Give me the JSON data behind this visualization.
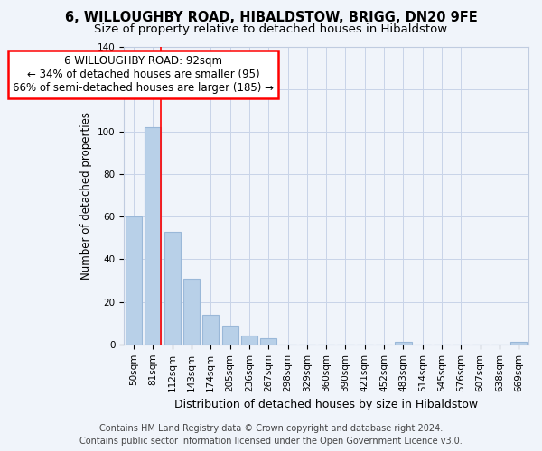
{
  "title": "6, WILLOUGHBY ROAD, HIBALDSTOW, BRIGG, DN20 9FE",
  "subtitle": "Size of property relative to detached houses in Hibaldstow",
  "xlabel": "Distribution of detached houses by size in Hibaldstow",
  "ylabel": "Number of detached properties",
  "bar_labels": [
    "50sqm",
    "81sqm",
    "112sqm",
    "143sqm",
    "174sqm",
    "205sqm",
    "236sqm",
    "267sqm",
    "298sqm",
    "329sqm",
    "360sqm",
    "390sqm",
    "421sqm",
    "452sqm",
    "483sqm",
    "514sqm",
    "545sqm",
    "576sqm",
    "607sqm",
    "638sqm",
    "669sqm"
  ],
  "bar_values": [
    60,
    102,
    53,
    31,
    14,
    9,
    4,
    3,
    0,
    0,
    0,
    0,
    0,
    0,
    1,
    0,
    0,
    0,
    0,
    0,
    1
  ],
  "bar_color": "#b8d0e8",
  "bar_edge_color": "#9ab8d8",
  "property_line_color": "red",
  "annotation_title": "6 WILLOUGHBY ROAD: 92sqm",
  "annotation_line1": "← 34% of detached houses are smaller (95)",
  "annotation_line2": "66% of semi-detached houses are larger (185) →",
  "annotation_box_facecolor": "white",
  "annotation_box_edgecolor": "red",
  "ylim": [
    0,
    140
  ],
  "footer_line1": "Contains HM Land Registry data © Crown copyright and database right 2024.",
  "footer_line2": "Contains public sector information licensed under the Open Government Licence v3.0.",
  "background_color": "#f0f4fa",
  "grid_color": "#c8d4e8",
  "title_fontsize": 10.5,
  "subtitle_fontsize": 9.5,
  "xlabel_fontsize": 9,
  "ylabel_fontsize": 8.5,
  "tick_fontsize": 7.5,
  "annotation_fontsize": 8.5,
  "footer_fontsize": 7
}
